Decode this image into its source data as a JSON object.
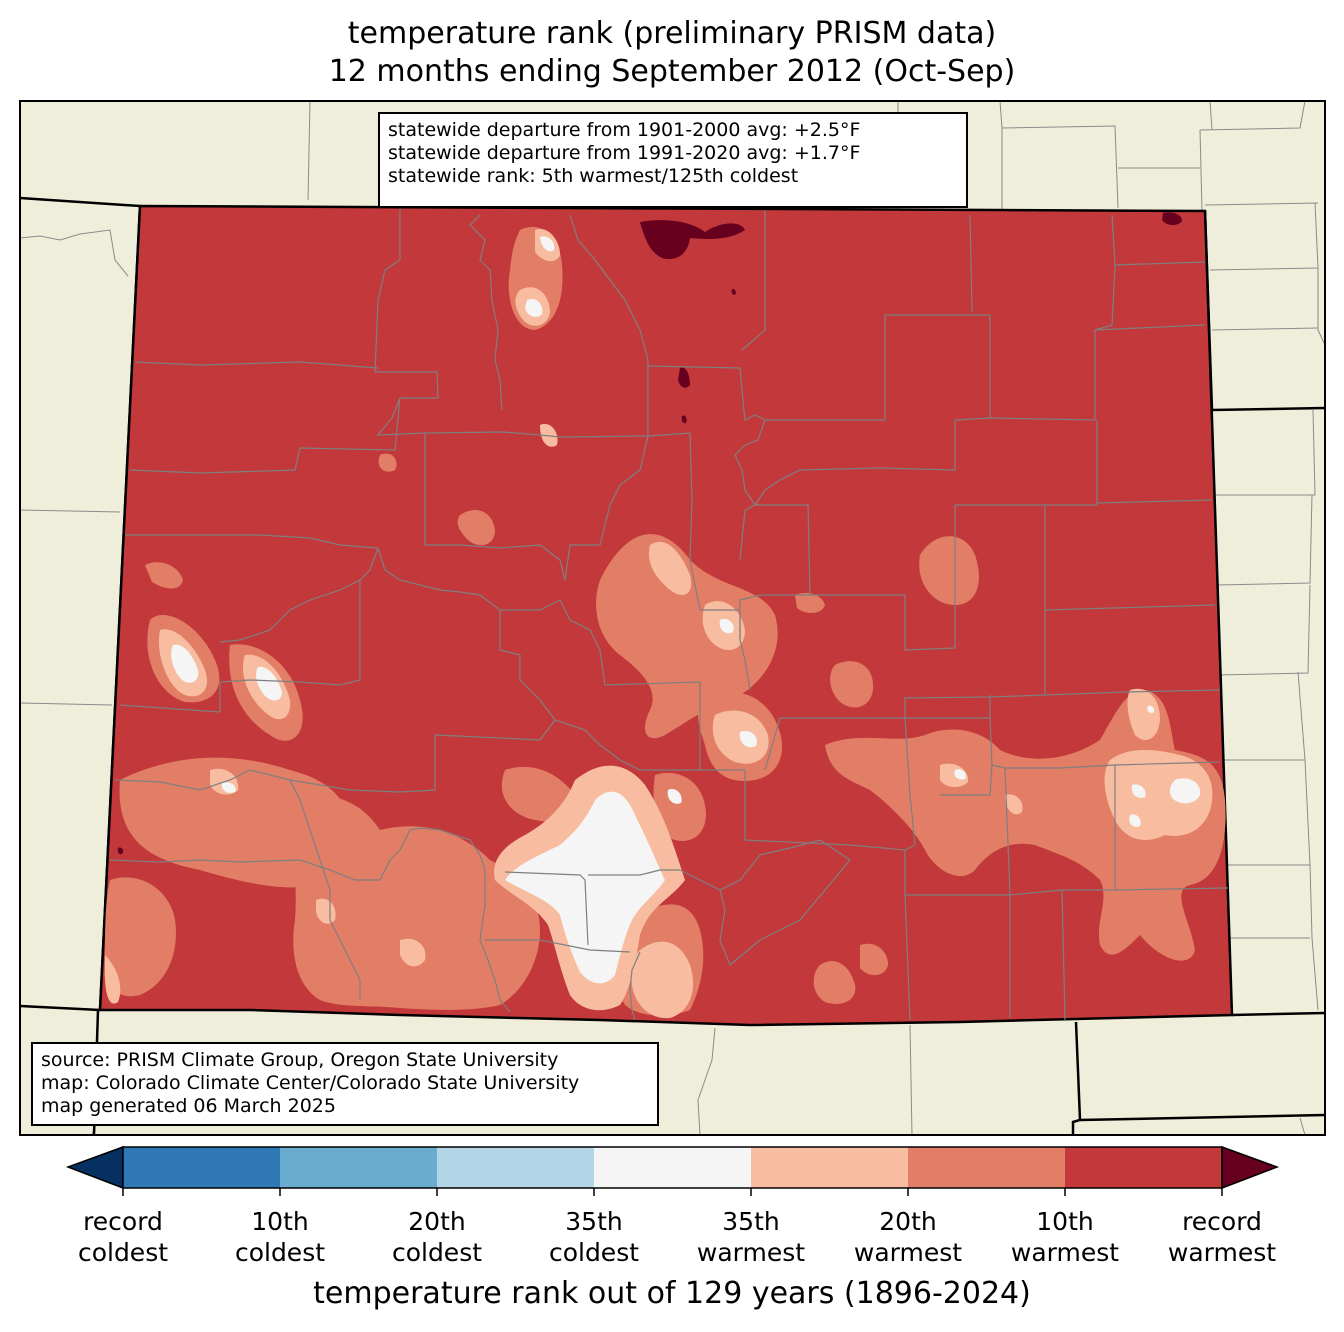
{
  "title": {
    "line1": "temperature rank (preliminary PRISM data)",
    "line2": "12 months ending September 2012 (Oct-Sep)"
  },
  "stats": [
    "statewide departure from 1901-2000 avg: +2.5°F",
    "statewide departure from 1991-2020 avg: +1.7°F",
    "statewide rank: 5th warmest/125th coldest"
  ],
  "source": [
    "source: PRISM Climate Group, Oregon State University",
    "map: Colorado Climate Center/Colorado State University",
    "map generated 06 March 2025"
  ],
  "colors": {
    "land": "#efeedb",
    "record_warmest": "#67001f",
    "warm_10": "#c3393b",
    "warm_20": "#e27e66",
    "warm_35": "#f8bca1",
    "neutral": "#f5f5f5",
    "cold_35": "#b2d5e7",
    "cold_20": "#6aacd0",
    "cold_10": "#2f7ab6",
    "record_coldest": "#053061"
  },
  "colorbar": {
    "title": "temperature rank out of 129 years (1896-2024)",
    "ticks": [
      {
        "line1": "record",
        "line2": "coldest"
      },
      {
        "line1": "10th",
        "line2": "coldest"
      },
      {
        "line1": "20th",
        "line2": "coldest"
      },
      {
        "line1": "35th",
        "line2": "coldest"
      },
      {
        "line1": "35th",
        "line2": "warmest"
      },
      {
        "line1": "20th",
        "line2": "warmest"
      },
      {
        "line1": "10th",
        "line2": "warmest"
      },
      {
        "line1": "record",
        "line2": "warmest"
      }
    ]
  }
}
